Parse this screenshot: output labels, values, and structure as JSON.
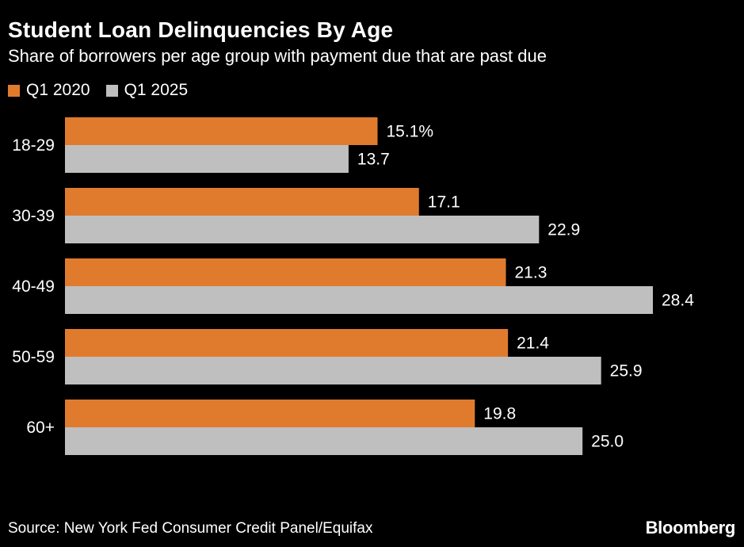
{
  "header": {
    "title": "Student Loan Delinquencies By Age",
    "subtitle": "Share of borrowers per age group with payment due that are past due"
  },
  "legend": [
    {
      "label": "Q1 2020",
      "color": "#e07b2e"
    },
    {
      "label": "Q1 2025",
      "color": "#bfbfbf"
    }
  ],
  "chart_data": {
    "type": "bar",
    "orientation": "horizontal",
    "categories": [
      "18-29",
      "30-39",
      "40-49",
      "50-59",
      "60+"
    ],
    "series": [
      {
        "name": "Q1 2020",
        "color": "#e07b2e",
        "values": [
          15.1,
          17.1,
          21.3,
          21.4,
          19.8
        ],
        "labels": [
          "15.1%",
          "17.1",
          "21.3",
          "21.4",
          "19.8"
        ]
      },
      {
        "name": "Q1 2025",
        "color": "#bfbfbf",
        "values": [
          13.7,
          22.9,
          28.4,
          25.9,
          25.0
        ],
        "labels": [
          "13.7",
          "22.9",
          "28.4",
          "25.9",
          "25.0"
        ]
      }
    ],
    "title": "Student Loan Delinquencies By Age",
    "subtitle": "Share of borrowers per age group with payment due that are past due",
    "xlim": [
      0,
      28.4
    ],
    "grid": false,
    "legend_position": "top-left"
  },
  "footer": {
    "source": "Source: New York Fed Consumer Credit Panel/Equifax",
    "brand": "Bloomberg"
  }
}
